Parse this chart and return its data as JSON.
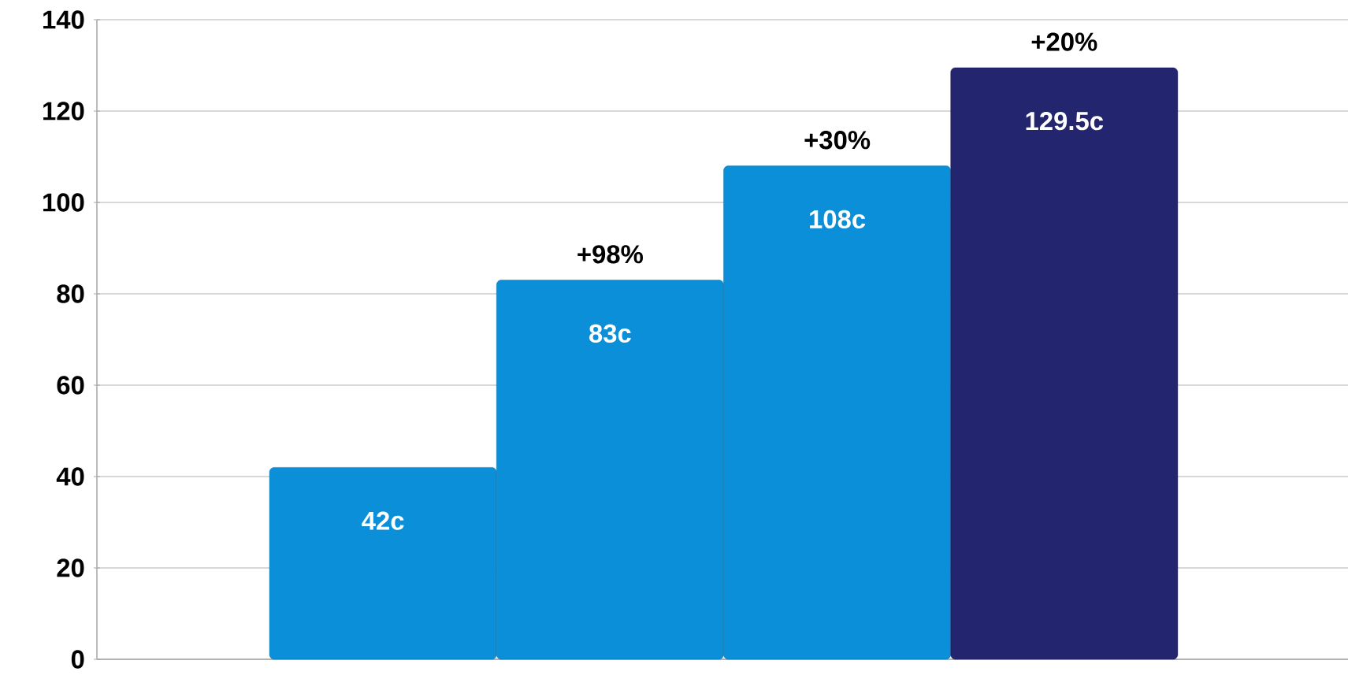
{
  "chart_data": {
    "type": "bar",
    "categories": [
      null,
      null,
      null,
      null
    ],
    "values": [
      42,
      83,
      108,
      129.5
    ],
    "colors": [
      "#0a8fd8",
      "#0a8fd8",
      "#0a8fd8",
      "#23256e"
    ],
    "value_labels": [
      "42c",
      "83c",
      "108c",
      "129.5c"
    ],
    "annotations": [
      "+98%",
      "+30%",
      "+20%"
    ],
    "ylim": [
      0,
      140
    ],
    "yticks": [
      0,
      20,
      40,
      60,
      80,
      100,
      120,
      140
    ],
    "grid": "y"
  }
}
